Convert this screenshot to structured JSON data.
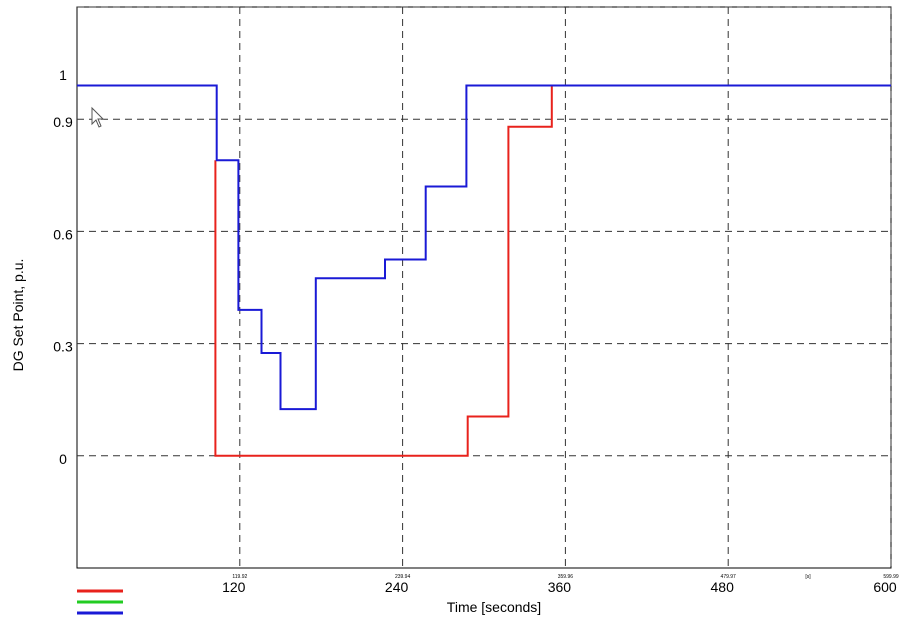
{
  "chart_data": {
    "type": "line",
    "step": true,
    "xlabel": "Time [seconds]",
    "ylabel": "DG Set Point, p.u.",
    "xlim": [
      0,
      600
    ],
    "ylim": [
      -0.3,
      1.2
    ],
    "grid": true,
    "grid_style": "dashed",
    "x_gridlines": [
      120,
      240,
      360,
      480,
      600
    ],
    "y_gridlines": [
      0,
      0.3,
      0.6,
      0.9,
      1.2
    ],
    "y_ticks": [
      {
        "value": 0,
        "label": "0"
      },
      {
        "value": 0.3,
        "label": "0.3"
      },
      {
        "value": 0.6,
        "label": "0.6"
      },
      {
        "value": 0.9,
        "label": "0.9"
      },
      {
        "value": 1.0,
        "label": "1"
      }
    ],
    "x_ticks": [
      {
        "value": 120,
        "label": "120",
        "small": "119.92"
      },
      {
        "value": 240,
        "label": "240",
        "small": "239.94"
      },
      {
        "value": 360,
        "label": "360",
        "small": "359.96"
      },
      {
        "value": 480,
        "label": "480",
        "small": "479.97"
      },
      {
        "value": 600,
        "label": "600",
        "small": "599.99"
      }
    ],
    "x_axis_extra_mark": "[s]",
    "series": [
      {
        "color": "#e8221c",
        "x": [
          102,
          102,
          288,
          288,
          318,
          318,
          350,
          350
        ],
        "y": [
          0.79,
          0,
          0,
          0.105,
          0.105,
          0.88,
          0.88,
          0.99
        ]
      },
      {
        "color": "#1a1ad6",
        "x": [
          0,
          103,
          103,
          119,
          119,
          136,
          136,
          150,
          150,
          176,
          176,
          227,
          227,
          257,
          257,
          287,
          287,
          600
        ],
        "y": [
          0.99,
          0.99,
          0.79,
          0.79,
          0.39,
          0.39,
          0.275,
          0.275,
          0.125,
          0.125,
          0.475,
          0.475,
          0.525,
          0.525,
          0.72,
          0.72,
          0.99,
          0.99
        ]
      }
    ],
    "legend_colors": [
      "#e8221c",
      "#22cc22",
      "#1a1ad6"
    ],
    "legend_placement": "bottom-left"
  }
}
